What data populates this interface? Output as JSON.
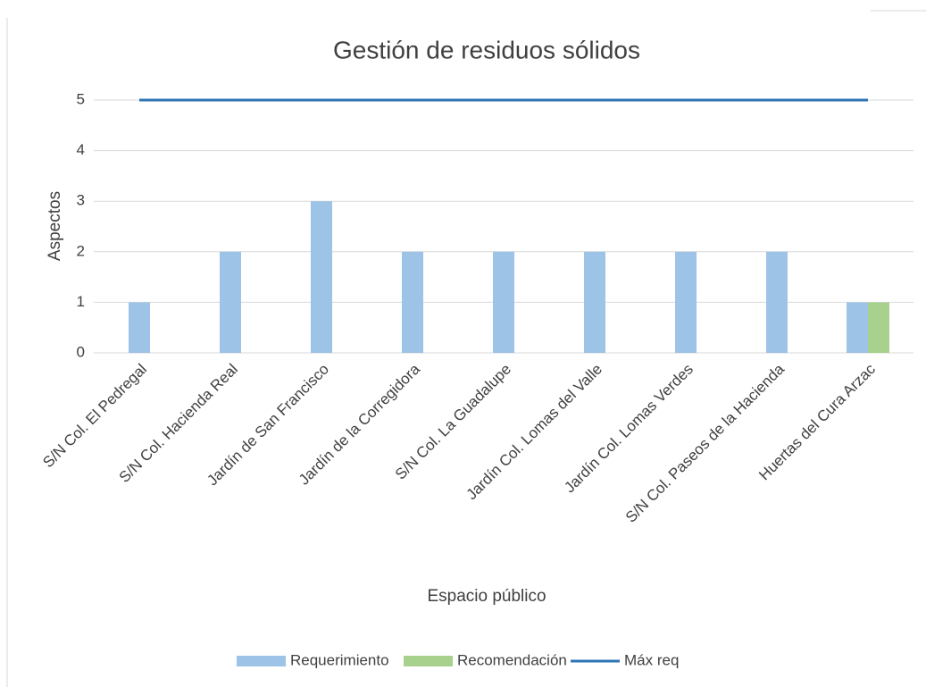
{
  "chart_data": {
    "type": "bar",
    "title": "Gestión de residuos sólidos",
    "x_label": "Espacio público",
    "y_label": "Aspectos",
    "categories": [
      "S/N Col. El Pedregal",
      "S/N Col. Hacienda Real",
      "Jardín de San Francisco",
      "Jardín de la Corregidora",
      "S/N Col. La Guadalupe",
      "Jardín Col. Lomas del Valle",
      "Jardín Col. Lomas Verdes",
      "S/N Col. Paseos de la Hacienda",
      "Huertas del Cura Arzac"
    ],
    "series": [
      {
        "name": "Requerimiento",
        "type": "bar",
        "color": "#9dc3e6",
        "values": [
          1,
          2,
          3,
          2,
          2,
          2,
          2,
          2,
          1
        ]
      },
      {
        "name": "Recomendación",
        "type": "bar",
        "color": "#a9d18e",
        "values": [
          null,
          null,
          null,
          null,
          null,
          null,
          null,
          null,
          1
        ]
      },
      {
        "name": "Máx req",
        "type": "line",
        "color": "#2e75b6",
        "values": [
          5,
          5,
          5,
          5,
          5,
          5,
          5,
          5,
          5
        ]
      }
    ],
    "ylim": [
      0,
      5
    ],
    "yticks": [
      0,
      1,
      2,
      3,
      4,
      5
    ],
    "grid": true,
    "legend": "bottom"
  }
}
